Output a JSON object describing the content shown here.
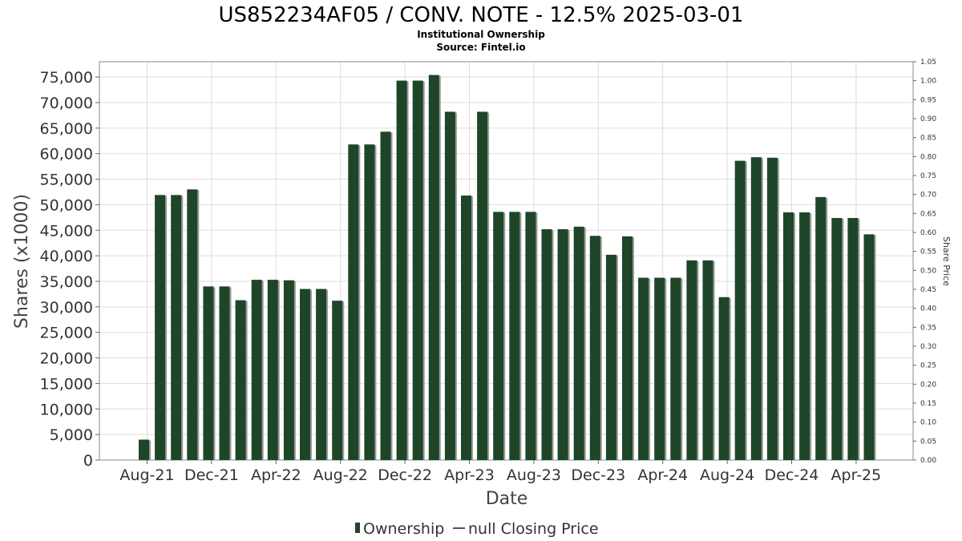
{
  "chart_data": {
    "type": "bar",
    "title": "US852234AF05 / CONV. NOTE - 12.5% 2025-03-01",
    "subtitle_lines": [
      "Institutional Ownership",
      "Source: Fintel.io"
    ],
    "xlabel": "Date",
    "ylabel": "Shares (x1000)",
    "y2label": "Share Price",
    "ylim": [
      0,
      78000
    ],
    "y2lim": [
      0,
      1.05
    ],
    "yticks": [
      "0",
      "5,000",
      "10,000",
      "15,000",
      "20,000",
      "25,000",
      "30,000",
      "35,000",
      "40,000",
      "45,000",
      "50,000",
      "55,000",
      "60,000",
      "65,000",
      "70,000",
      "75,000"
    ],
    "y2ticks": [
      "0.00",
      "0.05",
      "0.10",
      "0.15",
      "0.20",
      "0.25",
      "0.30",
      "0.35",
      "0.40",
      "0.45",
      "0.50",
      "0.55",
      "0.60",
      "0.65",
      "0.70",
      "0.75",
      "0.80",
      "0.85",
      "0.90",
      "0.95",
      "1.00",
      "1.05"
    ],
    "xticks": [
      "Aug-21",
      "Dec-21",
      "Apr-22",
      "Aug-22",
      "Dec-22",
      "Apr-23",
      "Aug-23",
      "Dec-23",
      "Apr-24",
      "Aug-24",
      "Dec-24",
      "Apr-25"
    ],
    "series": [
      {
        "name": "Ownership",
        "color": "#1f4529",
        "values": [
          4000,
          51900,
          51900,
          53000,
          34000,
          34000,
          31300,
          35300,
          35300,
          35200,
          33500,
          33500,
          31200,
          61800,
          61800,
          64300,
          74300,
          74300,
          75400,
          68200,
          51800,
          68200,
          48600,
          48600,
          48600,
          45200,
          45200,
          45700,
          43900,
          40200,
          43800,
          35700,
          35700,
          35700,
          39100,
          39100,
          31900,
          58600,
          59300,
          59200,
          48500,
          48500,
          51500,
          47400,
          47400,
          44200
        ]
      }
    ],
    "legend": [
      {
        "label": "Ownership",
        "marker": "bar",
        "color": "#1f4529"
      },
      {
        "label": "null Closing Price",
        "marker": "line",
        "color": "#555555"
      }
    ],
    "grid": true,
    "legend_position": "bottom"
  }
}
